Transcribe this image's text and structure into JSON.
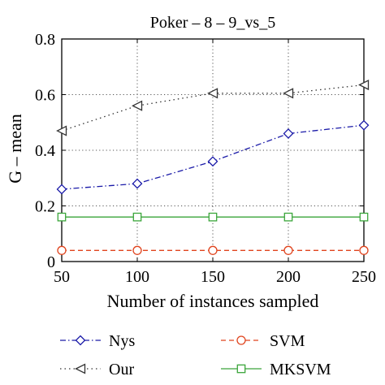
{
  "chart_data": {
    "type": "line",
    "title": "Poker – 8 – 9_vs_5",
    "xlabel": "Number of instances sampled",
    "ylabel": "G – mean",
    "x": [
      50,
      100,
      150,
      200,
      250
    ],
    "xlim": [
      50,
      250
    ],
    "ylim": [
      0,
      0.8
    ],
    "xticks": [
      "50",
      "100",
      "150",
      "200",
      "250"
    ],
    "yticks": [
      "0",
      "0.2",
      "0.4",
      "0.6",
      "0.8"
    ],
    "grid": true,
    "legend_position": "bottom",
    "series": [
      {
        "name": "Nys",
        "values": [
          0.26,
          0.28,
          0.36,
          0.46,
          0.49
        ],
        "color": "#1a1aa8",
        "marker": "diamond",
        "line": "dashdot"
      },
      {
        "name": "Our",
        "values": [
          0.47,
          0.56,
          0.605,
          0.605,
          0.635
        ],
        "color": "#333333",
        "marker": "triangle-left",
        "line": "dotted"
      },
      {
        "name": "SVM",
        "values": [
          0.04,
          0.04,
          0.04,
          0.04,
          0.04
        ],
        "color": "#e0441e",
        "marker": "circle",
        "line": "dashed"
      },
      {
        "name": "MKSVM",
        "values": [
          0.16,
          0.16,
          0.16,
          0.16,
          0.16
        ],
        "color": "#3aa53a",
        "marker": "square",
        "line": "solid"
      }
    ]
  }
}
